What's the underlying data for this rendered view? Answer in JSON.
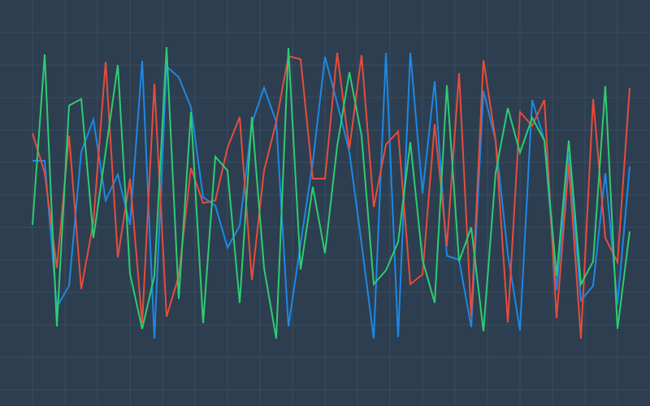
{
  "chart_data": {
    "type": "line",
    "title": "",
    "xlabel": "",
    "ylabel": "",
    "grid": true,
    "legend": "none",
    "xlim": [
      0,
      49
    ],
    "ylim": [
      0,
      100
    ],
    "background_color": "#2c3e50",
    "grid_color": "#3a4d61",
    "x": [
      0,
      1,
      2,
      3,
      4,
      5,
      6,
      7,
      8,
      9,
      10,
      11,
      12,
      13,
      14,
      15,
      16,
      17,
      18,
      19,
      20,
      21,
      22,
      23,
      24,
      25,
      26,
      27,
      28,
      29,
      30,
      31,
      32,
      33,
      34,
      35,
      36,
      37,
      38,
      39,
      40,
      41,
      42,
      43,
      44,
      45,
      46,
      47,
      48,
      49
    ],
    "series": [
      {
        "color": "#1e88e5",
        "values": [
          60.4,
          60.4,
          24.4,
          29.6,
          62.6,
          70.6,
          50.6,
          57,
          44.6,
          85,
          16.6,
          83.6,
          81,
          73.6,
          51.4,
          49.4,
          39,
          44.4,
          69.6,
          78.4,
          70,
          19.6,
          40,
          60,
          86,
          74.6,
          62.6,
          40,
          16.6,
          87,
          17,
          87,
          52.4,
          80,
          37,
          36,
          19.4,
          77.6,
          65.4,
          37.4,
          18.6,
          75.4,
          65.4,
          28.6,
          62,
          26,
          29.6,
          57.4,
          25,
          59
        ]
      },
      {
        "color": "#e74c3c",
        "values": [
          67.2,
          57.4,
          34,
          66.6,
          28.8,
          45.4,
          84.8,
          36.6,
          56,
          20.4,
          79.4,
          22,
          32,
          58.6,
          50,
          50.6,
          63.6,
          71.2,
          31,
          58,
          70,
          86.2,
          85.4,
          56,
          56,
          87,
          63.4,
          86.4,
          49,
          64.4,
          67.6,
          30,
          32.4,
          69.4,
          39.4,
          82,
          22,
          85.2,
          65.4,
          20.6,
          72.4,
          69,
          75.4,
          21.6,
          59.6,
          16.6,
          75.6,
          41.4,
          35.4,
          78.4
        ]
      },
      {
        "color": "#2ecc71",
        "values": [
          44.6,
          86.6,
          19.6,
          74,
          75.6,
          41.4,
          62.6,
          84,
          32.6,
          19,
          32,
          88.4,
          26.4,
          72.4,
          20.4,
          61.4,
          58,
          25.4,
          71.2,
          34,
          16.6,
          88.2,
          33.6,
          54,
          37.6,
          64,
          82.2,
          66.6,
          30,
          33.4,
          40.4,
          65,
          36,
          25.4,
          79,
          35.6,
          44,
          18.4,
          57.4,
          73.4,
          62.4,
          71,
          65.4,
          32,
          65.4,
          30,
          35.6,
          78.8,
          19,
          43
        ]
      }
    ]
  }
}
